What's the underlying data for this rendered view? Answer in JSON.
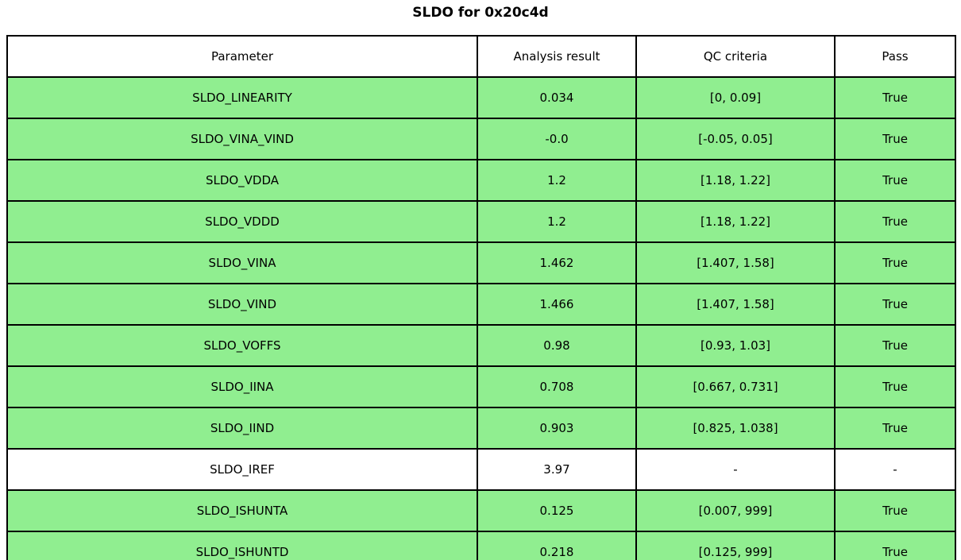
{
  "title": "SLDO for 0x20c4d",
  "colors": {
    "pass_green": "#90ee90",
    "neutral_white": "#ffffff",
    "border_black": "#000000"
  },
  "chart_data": {
    "type": "table",
    "title": "SLDO for 0x20c4d",
    "columns": [
      "Parameter",
      "Analysis result",
      "QC criteria",
      "Pass"
    ],
    "rows": [
      {
        "parameter": "SLDO_LINEARITY",
        "analysis_result": "0.034",
        "qc_criteria": "[0, 0.09]",
        "pass": "True",
        "highlighted": true
      },
      {
        "parameter": "SLDO_VINA_VIND",
        "analysis_result": "-0.0",
        "qc_criteria": "[-0.05, 0.05]",
        "pass": "True",
        "highlighted": true
      },
      {
        "parameter": "SLDO_VDDA",
        "analysis_result": "1.2",
        "qc_criteria": "[1.18, 1.22]",
        "pass": "True",
        "highlighted": true
      },
      {
        "parameter": "SLDO_VDDD",
        "analysis_result": "1.2",
        "qc_criteria": "[1.18, 1.22]",
        "pass": "True",
        "highlighted": true
      },
      {
        "parameter": "SLDO_VINA",
        "analysis_result": "1.462",
        "qc_criteria": "[1.407, 1.58]",
        "pass": "True",
        "highlighted": true
      },
      {
        "parameter": "SLDO_VIND",
        "analysis_result": "1.466",
        "qc_criteria": "[1.407, 1.58]",
        "pass": "True",
        "highlighted": true
      },
      {
        "parameter": "SLDO_VOFFS",
        "analysis_result": "0.98",
        "qc_criteria": "[0.93, 1.03]",
        "pass": "True",
        "highlighted": true
      },
      {
        "parameter": "SLDO_IINA",
        "analysis_result": "0.708",
        "qc_criteria": "[0.667, 0.731]",
        "pass": "True",
        "highlighted": true
      },
      {
        "parameter": "SLDO_IIND",
        "analysis_result": "0.903",
        "qc_criteria": "[0.825, 1.038]",
        "pass": "True",
        "highlighted": true
      },
      {
        "parameter": "SLDO_IREF",
        "analysis_result": "3.97",
        "qc_criteria": "-",
        "pass": "-",
        "highlighted": false
      },
      {
        "parameter": "SLDO_ISHUNTA",
        "analysis_result": "0.125",
        "qc_criteria": "[0.007, 999]",
        "pass": "True",
        "highlighted": true
      },
      {
        "parameter": "SLDO_ISHUNTD",
        "analysis_result": "0.218",
        "qc_criteria": "[0.125, 999]",
        "pass": "True",
        "highlighted": true
      }
    ]
  }
}
